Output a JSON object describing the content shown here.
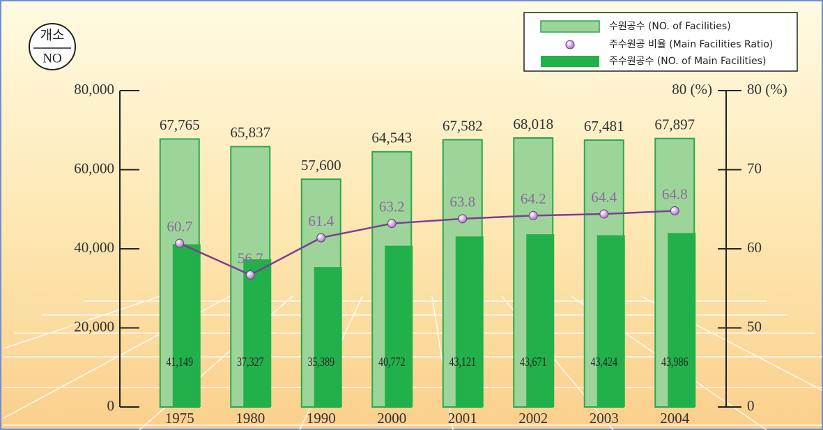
{
  "chart_data": {
    "type": "bar",
    "ylabel": [
      "개소",
      "NO"
    ],
    "categories": [
      "1975",
      "1980",
      "1990",
      "2000",
      "2001",
      "2002",
      "2003",
      "2004"
    ],
    "series": [
      {
        "name": "수원공수 (NO. of Facilities)",
        "type": "bar",
        "color": "#9dd49a",
        "stroke": "#2aa84a",
        "values": [
          67765,
          65837,
          57600,
          64543,
          67582,
          68018,
          67481,
          67897
        ],
        "value_labels": [
          "67,765",
          "65,837",
          "57,600",
          "64,543",
          "67,582",
          "68,018",
          "67,481",
          "67,897"
        ]
      },
      {
        "name": "주수원공 비율 (Main Facilities Ratio)",
        "type": "line",
        "axis": "y2",
        "color": "#7b3f96",
        "values": [
          60.7,
          56.7,
          61.4,
          63.2,
          63.8,
          64.2,
          64.4,
          64.8
        ]
      },
      {
        "name": "주수원공수 (NO. of Main Facilities)",
        "type": "bar",
        "color": "#22b04b",
        "values": [
          41149,
          37327,
          35389,
          40772,
          43121,
          43671,
          43424,
          43986
        ],
        "value_labels": [
          "41,149",
          "37,327",
          "35,389",
          "40,772",
          "43,121",
          "43,671",
          "43,424",
          "43,986"
        ]
      }
    ],
    "ylim": [
      0,
      80000
    ],
    "yticks": [
      0,
      {
        "value": 20000,
        "label": "20,000"
      },
      {
        "value": 40000,
        "label": "40,000"
      },
      {
        "value": 60000,
        "label": "60,000"
      },
      {
        "value": 80000,
        "label": "80,000"
      }
    ],
    "y2lim": [
      0,
      80
    ],
    "y2_break": [
      0,
      40
    ],
    "y2ticks": [
      0,
      50,
      60,
      70,
      {
        "value": 80,
        "label": "80 (%)"
      }
    ],
    "legend": "top-right"
  }
}
